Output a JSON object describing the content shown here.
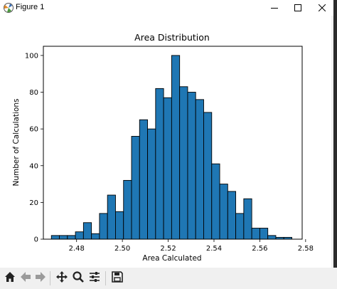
{
  "window": {
    "title": "Figure 1",
    "icon": "matplotlib-icon",
    "controls": [
      "minimize-icon",
      "maximize-icon",
      "close-icon"
    ]
  },
  "toolbar": {
    "buttons": [
      "home-icon",
      "back-icon",
      "forward-icon",
      "pan-icon",
      "zoom-icon",
      "configure-subplots-icon",
      "save-icon"
    ]
  },
  "chart_data": {
    "type": "bar",
    "title": "Area Distribution",
    "xlabel": "Area Calculated",
    "ylabel": "Number of Calculations",
    "xlim": [
      2.4655,
      2.5785
    ],
    "ylim": [
      0,
      105
    ],
    "xticks": [
      2.48,
      2.5,
      2.52,
      2.54,
      2.56,
      2.58
    ],
    "xtick_labels": [
      "2.48",
      "2.50",
      "2.52",
      "2.54",
      "2.56",
      "2.58"
    ],
    "yticks": [
      0,
      20,
      40,
      60,
      80,
      100
    ],
    "ytick_labels": [
      "0",
      "20",
      "40",
      "60",
      "80",
      "100"
    ],
    "bin_start": 2.469,
    "bin_width": 0.0035,
    "values": [
      2,
      2,
      2,
      4,
      9,
      3,
      14,
      24,
      15,
      32,
      56,
      65,
      60,
      82,
      77,
      100,
      83,
      80,
      76,
      69,
      41,
      30,
      26,
      14,
      22,
      6,
      6,
      2,
      1,
      1
    ],
    "bar_color": "#1f77b4",
    "edge_color": "#000000",
    "grid": false
  }
}
